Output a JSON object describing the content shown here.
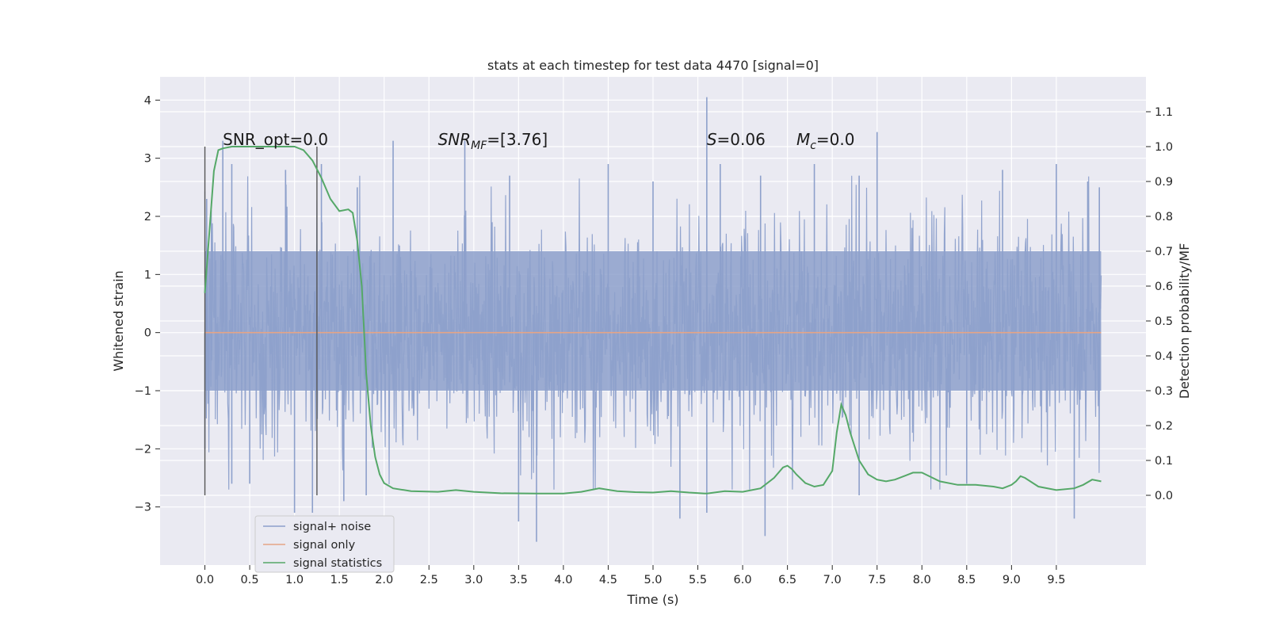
{
  "chart_data": {
    "type": "line",
    "title": "stats at each timestep for test data 4470 [signal=0]",
    "xlabel": "Time (s)",
    "ylabel_left": "Whitened strain",
    "ylabel_right": "Detection probability/MF",
    "xlim": [
      -0.5,
      10.5
    ],
    "ylim_left": [
      -4.0,
      4.4
    ],
    "ylim_right": [
      -0.2,
      1.2
    ],
    "x_ticks": [
      0.0,
      0.5,
      1.0,
      1.5,
      2.0,
      2.5,
      3.0,
      3.5,
      4.0,
      4.5,
      5.0,
      5.5,
      6.0,
      6.5,
      7.0,
      7.5,
      8.0,
      8.5,
      9.0,
      9.5
    ],
    "x_tick_labels": [
      "0.0",
      "0.5",
      "1.0",
      "1.5",
      "2.0",
      "2.5",
      "3.0",
      "3.5",
      "4.0",
      "4.5",
      "5.0",
      "5.5",
      "6.0",
      "6.5",
      "7.0",
      "7.5",
      "8.0",
      "8.5",
      "9.0",
      "9.5"
    ],
    "y_left_ticks": [
      -3,
      -2,
      -1,
      0,
      1,
      2,
      3,
      4
    ],
    "y_left_tick_labels": [
      "−3",
      "−2",
      "−1",
      "0",
      "1",
      "2",
      "3",
      "4"
    ],
    "y_right_ticks": [
      0.0,
      0.1,
      0.2,
      0.3,
      0.4,
      0.5,
      0.6,
      0.7,
      0.8,
      0.9,
      1.0,
      1.1
    ],
    "y_right_tick_labels": [
      "0.0",
      "0.1",
      "0.2",
      "0.3",
      "0.4",
      "0.5",
      "0.6",
      "0.7",
      "0.8",
      "0.9",
      "1.0",
      "1.1"
    ],
    "grid": true,
    "legend_position": "bottom-left",
    "annotations": {
      "snr_opt": "SNR_opt=0.0",
      "snr_mf_base": "SNR",
      "snr_mf_sub": "MF",
      "snr_mf_value": "=[3.76]",
      "s_var": "S",
      "s_value": "=0.06",
      "mc_base": "M",
      "mc_sub": "c",
      "mc_value": "=0.0"
    },
    "vertical_lines": [
      {
        "x": 0.0,
        "ymin": -2.8,
        "ymax": 3.2
      },
      {
        "x": 1.25,
        "ymin": -2.8,
        "ymax": 3.2
      }
    ],
    "series": [
      {
        "name": "signal+ noise",
        "color": "#8da0cb",
        "axis": "left",
        "noise": {
          "x_start": 0.0,
          "x_end": 10.0,
          "band_lo": -1.0,
          "band_hi": 1.4
        },
        "peak_points": [
          [
            0.02,
            2.3
          ],
          [
            0.2,
            3.3
          ],
          [
            0.3,
            2.9
          ],
          [
            0.9,
            2.8
          ],
          [
            1.3,
            2.9
          ],
          [
            1.7,
            2.5
          ],
          [
            2.1,
            3.3
          ],
          [
            2.9,
            3.3
          ],
          [
            3.4,
            2.7
          ],
          [
            4.5,
            2.9
          ],
          [
            5.0,
            2.6
          ],
          [
            5.6,
            4.05
          ],
          [
            5.75,
            2.9
          ],
          [
            6.2,
            2.7
          ],
          [
            6.8,
            2.9
          ],
          [
            7.3,
            2.7
          ],
          [
            7.5,
            3.45
          ],
          [
            8.9,
            2.8
          ],
          [
            9.5,
            2.9
          ],
          [
            9.85,
            2.6
          ],
          [
            9.98,
            2.5
          ]
        ],
        "trough_points": [
          [
            0.0,
            -2.0
          ],
          [
            0.3,
            -2.6
          ],
          [
            0.5,
            -2.6
          ],
          [
            1.0,
            -3.1
          ],
          [
            1.2,
            -3.1
          ],
          [
            1.55,
            -2.9
          ],
          [
            1.8,
            -2.8
          ],
          [
            3.5,
            -3.25
          ],
          [
            3.7,
            -3.6
          ],
          [
            5.3,
            -3.2
          ],
          [
            5.6,
            -3.1
          ],
          [
            6.25,
            -3.5
          ],
          [
            7.3,
            -2.8
          ],
          [
            8.5,
            -2.6
          ],
          [
            9.7,
            -3.2
          ]
        ]
      },
      {
        "name": "signal only",
        "color": "#e5a486",
        "axis": "left",
        "x": [
          0.0,
          10.0
        ],
        "y": [
          0.0,
          0.0
        ]
      },
      {
        "name": "signal statistics",
        "color": "#55a868",
        "axis": "right",
        "x": [
          0.0,
          0.1,
          0.15,
          0.2,
          0.3,
          0.5,
          0.8,
          1.0,
          1.1,
          1.2,
          1.3,
          1.4,
          1.5,
          1.6,
          1.65,
          1.7,
          1.75,
          1.8,
          1.85,
          1.9,
          1.95,
          2.0,
          2.1,
          2.3,
          2.6,
          2.8,
          3.0,
          3.3,
          3.7,
          4.0,
          4.2,
          4.4,
          4.6,
          4.8,
          5.0,
          5.2,
          5.4,
          5.6,
          5.8,
          6.0,
          6.2,
          6.35,
          6.45,
          6.5,
          6.55,
          6.6,
          6.7,
          6.8,
          6.9,
          7.0,
          7.05,
          7.1,
          7.15,
          7.2,
          7.3,
          7.4,
          7.5,
          7.6,
          7.7,
          7.8,
          7.9,
          8.0,
          8.2,
          8.4,
          8.6,
          8.8,
          8.9,
          9.0,
          9.05,
          9.1,
          9.15,
          9.3,
          9.5,
          9.7,
          9.8,
          9.9,
          10.0
        ],
        "y": [
          0.58,
          0.93,
          0.99,
          0.995,
          1.0,
          1.0,
          1.0,
          1.0,
          0.99,
          0.96,
          0.91,
          0.85,
          0.815,
          0.82,
          0.81,
          0.73,
          0.6,
          0.35,
          0.2,
          0.11,
          0.06,
          0.035,
          0.02,
          0.012,
          0.01,
          0.015,
          0.01,
          0.006,
          0.005,
          0.005,
          0.01,
          0.02,
          0.012,
          0.009,
          0.008,
          0.012,
          0.008,
          0.005,
          0.012,
          0.01,
          0.02,
          0.05,
          0.08,
          0.085,
          0.075,
          0.06,
          0.035,
          0.025,
          0.03,
          0.07,
          0.18,
          0.26,
          0.23,
          0.18,
          0.1,
          0.06,
          0.045,
          0.04,
          0.045,
          0.055,
          0.065,
          0.065,
          0.04,
          0.03,
          0.03,
          0.025,
          0.02,
          0.03,
          0.04,
          0.055,
          0.05,
          0.025,
          0.015,
          0.02,
          0.03,
          0.045,
          0.04
        ]
      }
    ]
  }
}
